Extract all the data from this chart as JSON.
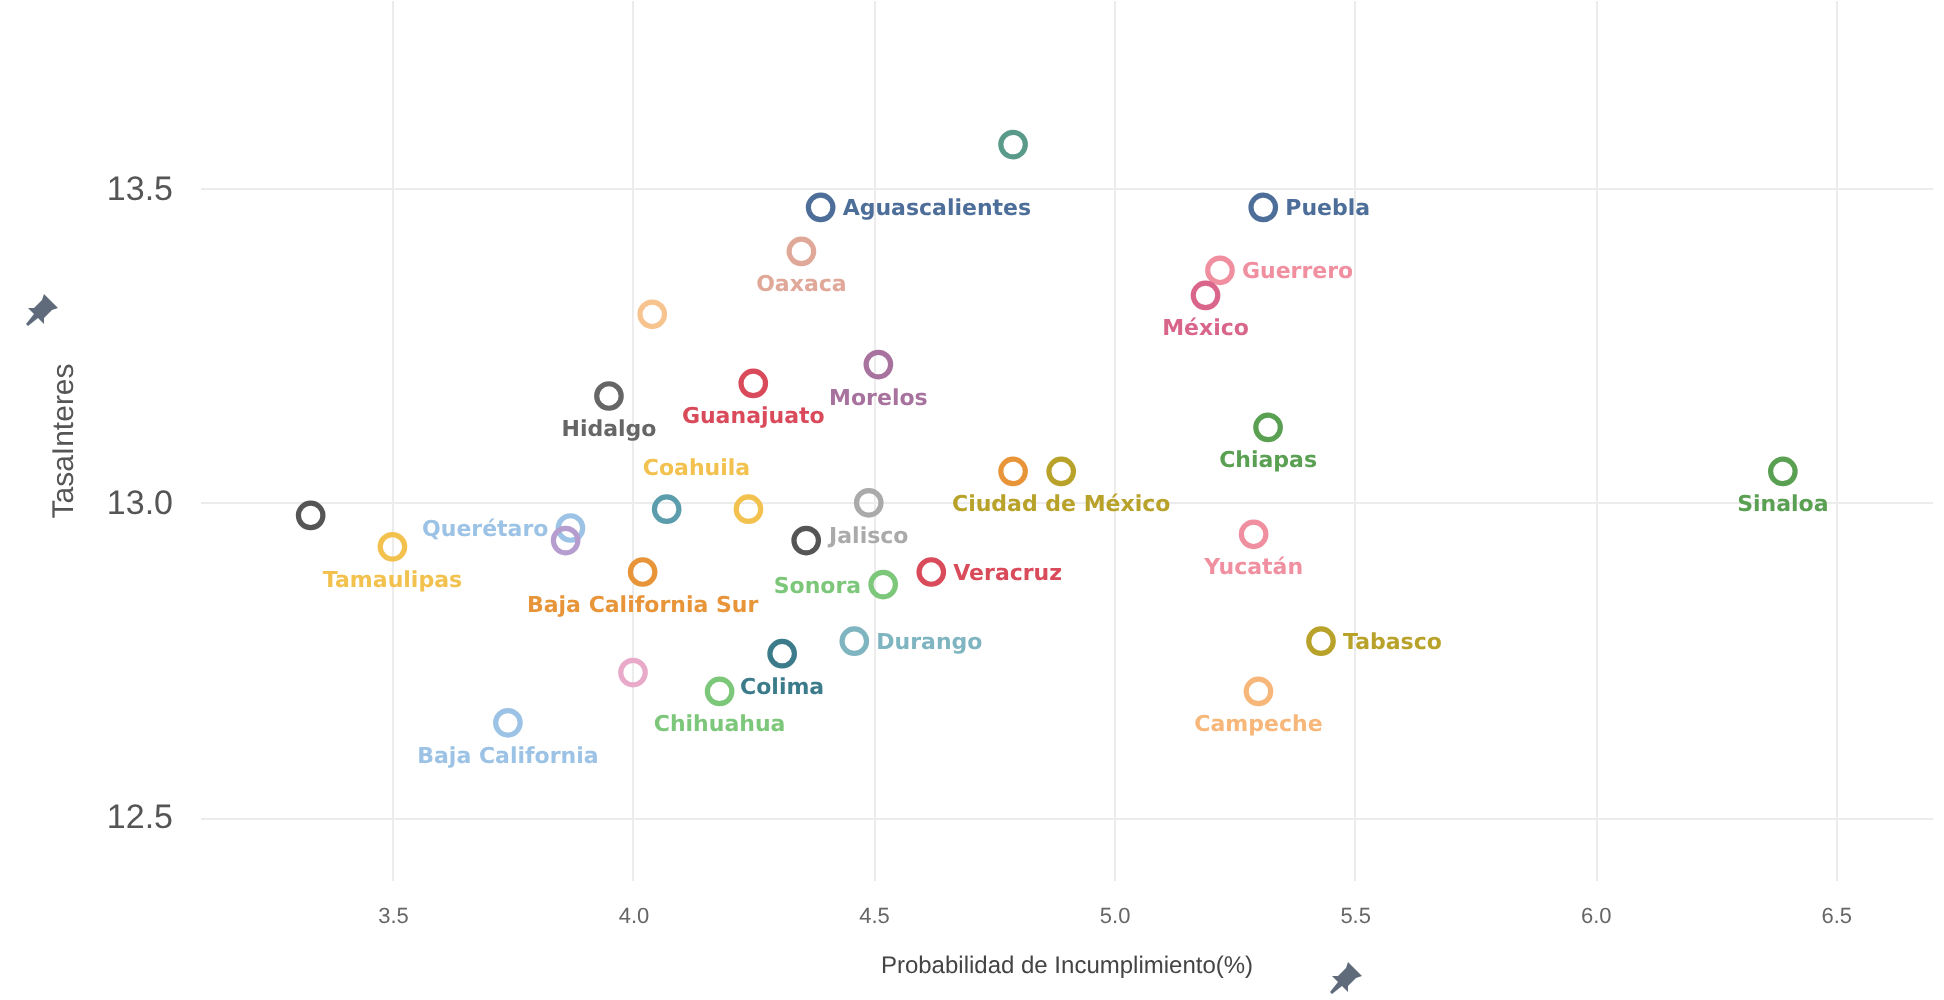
{
  "chart_data": {
    "type": "scatter",
    "xlabel": "Probabilidad de Incumplimiento(%)",
    "ylabel": "TasaInteres",
    "xlim": [
      3.1,
      6.7
    ],
    "ylim": [
      12.4,
      13.8
    ],
    "xticks": [
      3.5,
      {
        "value": 4,
        "label": "4.0"
      },
      4.5,
      {
        "value": 5,
        "label": "5.0"
      },
      5.5,
      {
        "value": 6,
        "label": "6.0"
      },
      6.5
    ],
    "yticks": [
      12.5,
      {
        "value": 13,
        "label": "13.0"
      },
      13.5
    ],
    "grid": true,
    "marker": "circle",
    "series": [
      {
        "color": "#5a9a8a",
        "x": [
          4.79
        ],
        "values": [
          13.57
        ]
      },
      {
        "name": "Aguascalientes",
        "color": "#4e6e9a",
        "x": [
          4.39
        ],
        "values": [
          13.47
        ]
      },
      {
        "name": "Puebla",
        "color": "#4e6e9a",
        "x": [
          5.31
        ],
        "values": [
          13.47
        ]
      },
      {
        "name": "Oaxaca",
        "color": "#e0a899",
        "x": [
          4.35
        ],
        "values": [
          13.4
        ]
      },
      {
        "name": "Guerrero",
        "color": "#f08f9f",
        "x": [
          5.22
        ],
        "values": [
          13.37
        ]
      },
      {
        "name": "México",
        "color": "#d9668a",
        "x": [
          5.19
        ],
        "values": [
          13.33
        ]
      },
      {
        "color": "#f7c48f",
        "x": [
          4.04
        ],
        "values": [
          13.3
        ]
      },
      {
        "name": "Hidalgo",
        "color": "#666666",
        "x": [
          3.95
        ],
        "values": [
          13.17
        ]
      },
      {
        "name": "Guanajuato",
        "color": "#d94a5a",
        "x": [
          4.25
        ],
        "values": [
          13.19
        ]
      },
      {
        "name": "Morelos",
        "color": "#a8729e",
        "x": [
          4.51
        ],
        "values": [
          13.22
        ]
      },
      {
        "name": "Chiapas",
        "color": "#5aa052",
        "x": [
          5.32
        ],
        "values": [
          13.12
        ]
      },
      {
        "name": "Sinaloa",
        "color": "#5aa052",
        "x": [
          6.39
        ],
        "values": [
          13.05
        ]
      },
      {
        "color": "#e8953a",
        "x": [
          4.79
        ],
        "values": [
          13.05
        ]
      },
      {
        "name": "Ciudad de México",
        "color": "#b8a22a",
        "x": [
          4.89
        ],
        "values": [
          13.05
        ]
      },
      {
        "color": "#555555",
        "x": [
          3.33
        ],
        "values": [
          12.98
        ]
      },
      {
        "name": "Tamaulipas",
        "color": "#f2c14e",
        "x": [
          3.5
        ],
        "values": [
          12.93
        ]
      },
      {
        "name": "Querétaro",
        "color": "#9cc3e5",
        "x": [
          3.87
        ],
        "values": [
          12.96
        ]
      },
      {
        "color": "#b59dd0",
        "x": [
          3.86
        ],
        "values": [
          12.94
        ]
      },
      {
        "color": "#5c9dad",
        "x": [
          4.07
        ],
        "values": [
          12.99
        ]
      },
      {
        "name": "Coahuila",
        "color": "#f2c14e",
        "x": [
          4.24
        ],
        "values": [
          12.99
        ]
      },
      {
        "name": "Jalisco",
        "color": "#aaaaaa",
        "x": [
          4.49
        ],
        "values": [
          13.0
        ]
      },
      {
        "color": "#555555",
        "x": [
          4.36
        ],
        "values": [
          12.94
        ]
      },
      {
        "name": "Sonora",
        "color": "#7dc77a",
        "x": [
          4.52
        ],
        "values": [
          12.87
        ]
      },
      {
        "name": "Veracruz",
        "color": "#d94a5a",
        "x": [
          4.62
        ],
        "values": [
          12.89
        ]
      },
      {
        "name": "Baja California Sur",
        "color": "#e8953a",
        "x": [
          4.02
        ],
        "values": [
          12.89
        ]
      },
      {
        "name": "Durango",
        "color": "#7fb5c0",
        "x": [
          4.46
        ],
        "values": [
          12.78
        ]
      },
      {
        "name": "Colima",
        "color": "#3b7b8a",
        "x": [
          4.31
        ],
        "values": [
          12.76
        ]
      },
      {
        "name": "Chihuahua",
        "color": "#7dc77a",
        "x": [
          4.18
        ],
        "values": [
          12.7
        ]
      },
      {
        "color": "#e8aac8",
        "x": [
          4.0
        ],
        "values": [
          12.73
        ]
      },
      {
        "name": "Baja California",
        "color": "#9cc3e5",
        "x": [
          3.74
        ],
        "values": [
          12.65
        ]
      },
      {
        "name": "Yucatán",
        "color": "#f08f9f",
        "x": [
          5.29
        ],
        "values": [
          12.95
        ]
      },
      {
        "name": "Tabasco",
        "color": "#b8a22a",
        "x": [
          5.43
        ],
        "values": [
          12.78
        ]
      },
      {
        "name": "Campeche",
        "color": "#f7b77a",
        "x": [
          5.3
        ],
        "values": [
          12.7
        ]
      }
    ]
  }
}
